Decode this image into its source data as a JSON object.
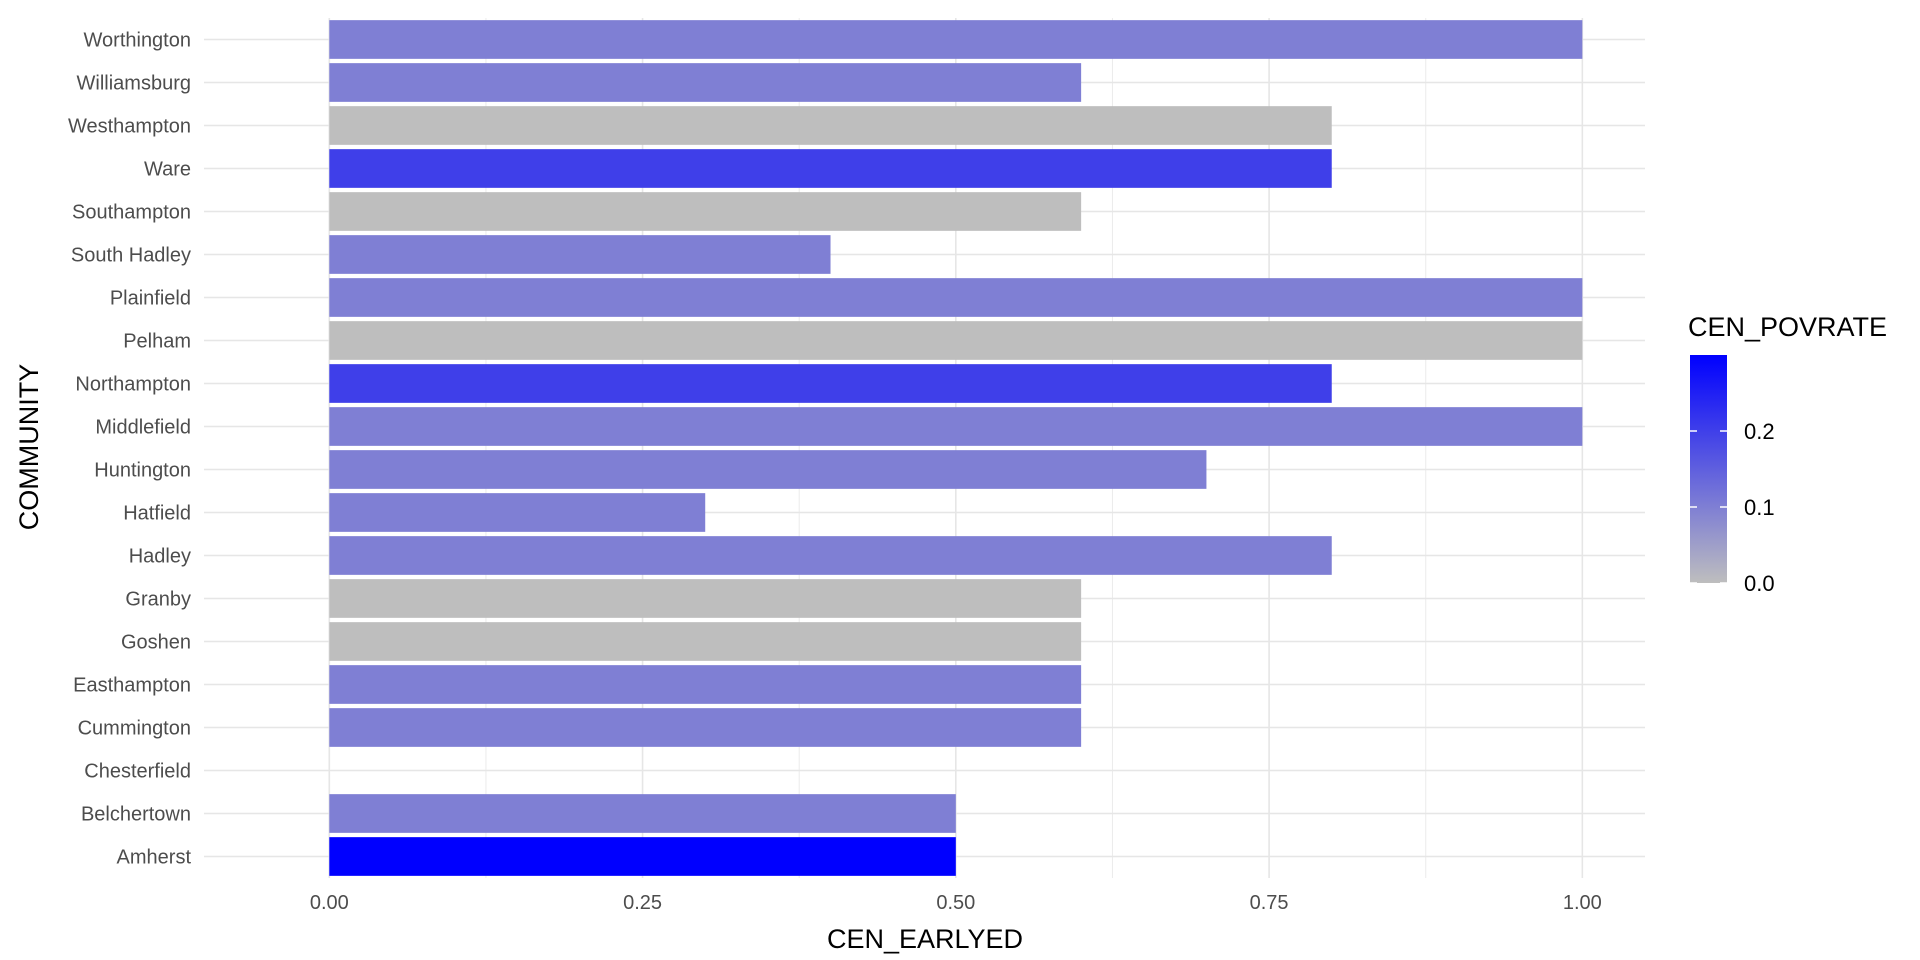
{
  "chart_data": {
    "type": "bar",
    "orientation": "horizontal",
    "xlabel": "CEN_EARLYED",
    "ylabel": "COMMUNITY",
    "xlim": [
      -0.1,
      1.05
    ],
    "x_ticks": [
      "0.00",
      "0.25",
      "0.50",
      "0.75",
      "1.00"
    ],
    "x_tick_values": [
      0,
      0.25,
      0.5,
      0.75,
      1.0
    ],
    "grid": true,
    "legend_placement": "right",
    "categories": [
      "Amherst",
      "Belchertown",
      "Chesterfield",
      "Cummington",
      "Easthampton",
      "Goshen",
      "Granby",
      "Hadley",
      "Hatfield",
      "Huntington",
      "Middlefield",
      "Northampton",
      "Pelham",
      "Plainfield",
      "South Hadley",
      "Southampton",
      "Ware",
      "Westhampton",
      "Williamsburg",
      "Worthington"
    ],
    "values": [
      0.5,
      0.5,
      null,
      0.6,
      0.6,
      0.6,
      0.6,
      0.8,
      0.3,
      0.7,
      1.0,
      0.8,
      1.0,
      1.0,
      0.4,
      0.6,
      0.8,
      0.8,
      0.6,
      1.0
    ],
    "fill_values": [
      0.3,
      0.1,
      null,
      0.1,
      0.1,
      0.0,
      0.0,
      0.1,
      0.1,
      0.1,
      0.1,
      0.2,
      0.0,
      0.1,
      0.1,
      0.0,
      0.2,
      0.0,
      0.1,
      0.1
    ],
    "legend": {
      "title": "CEN_POVRATE",
      "labels": [
        "0.0",
        "0.1",
        "0.2"
      ],
      "values": [
        0.0,
        0.1,
        0.2
      ],
      "range": [
        0.0,
        0.3
      ],
      "color_low": "#BEBEBE",
      "color_high": "#0000FF"
    }
  }
}
